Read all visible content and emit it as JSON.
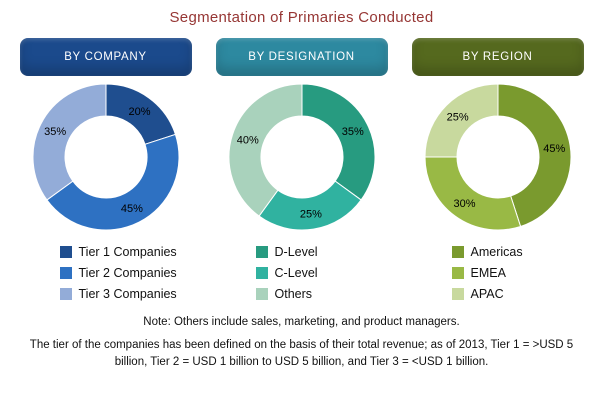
{
  "title": "Segmentation of Primaries Conducted",
  "note": "Note: Others include sales, marketing, and product managers.",
  "footer": "The tier of the companies has been defined on the basis of their total revenue; as of 2013, Tier 1 = >USD 5 billion, Tier 2 = USD 1 billion to USD 5 billion, and Tier 3 = <USD 1 billion.",
  "title_color": "#963634",
  "chart_data": [
    {
      "type": "pie",
      "donut": true,
      "title": "BY COMPANY",
      "banner_color": "#1B4A8C",
      "legend_position": "bottom",
      "slices": [
        {
          "label": "Tier 1 Companies",
          "value": 20,
          "color": "#1F4E8F"
        },
        {
          "label": "Tier 2 Companies",
          "value": 45,
          "color": "#2E71C2"
        },
        {
          "label": "Tier 3 Companies",
          "value": 35,
          "color": "#93ACD8"
        }
      ]
    },
    {
      "type": "pie",
      "donut": true,
      "title": "BY DESIGNATION",
      "banner_color": "#2D89A0",
      "legend_position": "bottom",
      "slices": [
        {
          "label": "D-Level",
          "value": 35,
          "color": "#279B80"
        },
        {
          "label": "C-Level",
          "value": 25,
          "color": "#30B2A0"
        },
        {
          "label": "Others",
          "value": 40,
          "color": "#A9D2BC"
        }
      ]
    },
    {
      "type": "pie",
      "donut": true,
      "title": "BY REGION",
      "banner_color": "#55691E",
      "legend_position": "bottom",
      "slices": [
        {
          "label": "Americas",
          "value": 45,
          "color": "#7A9A2E"
        },
        {
          "label": "EMEA",
          "value": 30,
          "color": "#99B945"
        },
        {
          "label": "APAC",
          "value": 25,
          "color": "#C8D99E"
        }
      ]
    }
  ]
}
